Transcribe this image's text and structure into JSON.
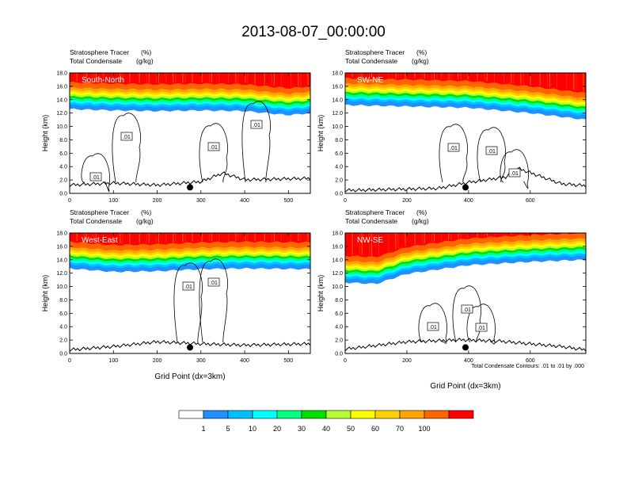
{
  "title": "2013-08-07_00:00:00",
  "panel_labels": {
    "tracer_label": "Stratosphere Tracer",
    "tracer_units": "(%)",
    "condensate_label": "Total Condensate",
    "condensate_units": "(g/kg)",
    "y_axis_label": "Height (km)",
    "x_axis_label": "Grid Point (dx=3km)",
    "contour_note": "Total Condensate Contours: .01 to .01 by .000"
  },
  "colors": {
    "levels": [
      "#ffffff",
      "#1e90ff",
      "#00bfff",
      "#00ffff",
      "#00ff7f",
      "#00e000",
      "#b4ff32",
      "#ffff00",
      "#ffd200",
      "#ffa500",
      "#ff6400",
      "#ff0000"
    ],
    "contour": "#000000"
  },
  "chart_data": [
    {
      "type": "heatmap",
      "panel": "South-North",
      "xlim": [
        0,
        550
      ],
      "ylim": [
        0,
        18
      ],
      "xticks": [
        0,
        100,
        200,
        300,
        400,
        500
      ],
      "yticks": [
        "0.0",
        "2.0",
        "4.0",
        "6.0",
        "8.0",
        "10.0",
        "12.0",
        "14.0",
        "16.0",
        "18.0"
      ],
      "tropopause_km": [
        [
          0,
          13.2
        ],
        [
          100,
          13.0
        ],
        [
          200,
          12.9
        ],
        [
          300,
          13.0
        ],
        [
          400,
          12.9
        ],
        [
          500,
          12.3
        ],
        [
          550,
          12.6
        ]
      ],
      "contour_labels": [
        ".01",
        ".01",
        ".01",
        ".01"
      ],
      "terrain_km": [
        [
          0,
          1.0
        ],
        [
          100,
          1.3
        ],
        [
          200,
          1.0
        ],
        [
          300,
          1.5
        ],
        [
          350,
          2.8
        ],
        [
          400,
          1.8
        ],
        [
          550,
          2.0
        ]
      ],
      "marker_x": 275
    },
    {
      "type": "heatmap",
      "panel": "SW-NE",
      "xlim": [
        0,
        780
      ],
      "ylim": [
        0,
        18
      ],
      "xticks": [
        0,
        200,
        400,
        600
      ],
      "yticks": [
        "0.0",
        "2.0",
        "4.0",
        "6.0",
        "8.0",
        "10.0",
        "12.0",
        "14.0",
        "16.0",
        "18.0"
      ],
      "tropopause_km": [
        [
          0,
          13.8
        ],
        [
          200,
          13.6
        ],
        [
          400,
          13.4
        ],
        [
          600,
          12.6
        ],
        [
          780,
          11.6
        ]
      ],
      "contour_labels": [
        ".01",
        ".01",
        ".01"
      ],
      "terrain_km": [
        [
          0,
          0.2
        ],
        [
          300,
          0.5
        ],
        [
          400,
          1.4
        ],
        [
          520,
          2.2
        ],
        [
          560,
          3.5
        ],
        [
          700,
          1.2
        ],
        [
          780,
          0.9
        ]
      ],
      "marker_x": 390
    },
    {
      "type": "heatmap",
      "panel": "West-East",
      "xlim": [
        0,
        550
      ],
      "ylim": [
        0,
        18
      ],
      "xticks": [
        0,
        100,
        200,
        300,
        400,
        500
      ],
      "yticks": [
        "0.0",
        "2.0",
        "4.0",
        "6.0",
        "8.0",
        "10.0",
        "12.0",
        "14.0",
        "16.0",
        "18.0"
      ],
      "tropopause_km": [
        [
          0,
          13.3
        ],
        [
          100,
          12.8
        ],
        [
          200,
          12.9
        ],
        [
          300,
          13.2
        ],
        [
          400,
          13.3
        ],
        [
          550,
          13.2
        ]
      ],
      "contour_labels": [
        ".01",
        ".01"
      ],
      "terrain_km": [
        [
          0,
          0.3
        ],
        [
          100,
          0.8
        ],
        [
          200,
          1.5
        ],
        [
          300,
          1.2
        ],
        [
          400,
          1.0
        ],
        [
          550,
          1.2
        ]
      ],
      "marker_x": 275
    },
    {
      "type": "heatmap",
      "panel": "NW-SE",
      "xlim": [
        0,
        780
      ],
      "ylim": [
        0,
        18
      ],
      "xticks": [
        0,
        200,
        400,
        600
      ],
      "yticks": [
        "0.0",
        "2.0",
        "4.0",
        "6.0",
        "8.0",
        "10.0",
        "12.0",
        "14.0",
        "16.0",
        "18.0"
      ],
      "tropopause_km": [
        [
          0,
          11.2
        ],
        [
          100,
          11.0
        ],
        [
          200,
          12.5
        ],
        [
          400,
          13.8
        ],
        [
          600,
          14.3
        ],
        [
          780,
          14.6
        ]
      ],
      "contour_labels": [
        ".01",
        ".01",
        ".01"
      ],
      "terrain_km": [
        [
          0,
          0.4
        ],
        [
          200,
          1.5
        ],
        [
          380,
          1.8
        ],
        [
          500,
          1.6
        ],
        [
          700,
          0.8
        ],
        [
          780,
          0.3
        ]
      ],
      "marker_x": 390
    }
  ],
  "colorbar": {
    "labels": [
      "1",
      "5",
      "10",
      "20",
      "30",
      "40",
      "50",
      "60",
      "70",
      "100"
    ]
  }
}
